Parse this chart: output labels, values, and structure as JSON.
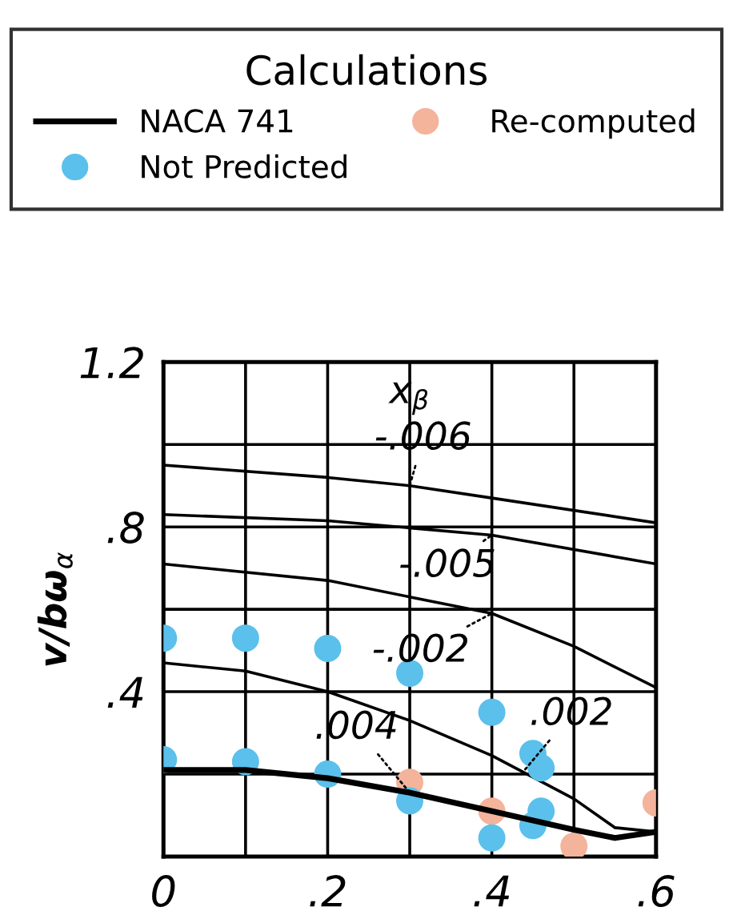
{
  "chart_data": {
    "type": "line",
    "legend_title": "Calculations",
    "ylabel": "v/bω$_{α}$",
    "xlim": [
      0,
      0.6
    ],
    "ylim": [
      0,
      1.2
    ],
    "xticks": [
      0,
      {
        "value": 0.1,
        "label": null
      },
      {
        "value": 0.2,
        "label": ".2"
      },
      {
        "value": 0.3,
        "label": null
      },
      {
        "value": 0.4,
        "label": ".4"
      },
      {
        "value": 0.5,
        "label": null
      },
      {
        "value": 0.6,
        "label": ".6"
      }
    ],
    "yticks": [
      {
        "value": 0,
        "label": null
      },
      {
        "value": 0.2,
        "label": null
      },
      {
        "value": 0.4,
        "label": ".4"
      },
      {
        "value": 0.6,
        "label": null
      },
      {
        "value": 0.8,
        "label": ".8"
      },
      {
        "value": 1.0,
        "label": null
      },
      1.2
    ],
    "grid": true,
    "legend": "top",
    "series": [
      {
        "color": "#000000",
        "x": [
          0,
          0.2,
          0.3,
          0.4,
          0.6
        ],
        "values": [
          0.95,
          0.92,
          0.9,
          0.87,
          0.81
        ]
      },
      {
        "color": "#000000",
        "x": [
          0,
          0.2,
          0.4,
          0.6
        ],
        "values": [
          0.83,
          0.815,
          0.78,
          0.71
        ]
      },
      {
        "color": "#000000",
        "x": [
          0,
          0.2,
          0.3,
          0.4,
          0.5,
          0.6
        ],
        "values": [
          0.71,
          0.67,
          0.63,
          0.59,
          0.51,
          0.41
        ]
      },
      {
        "color": "#000000",
        "x": [
          0,
          0.1,
          0.2,
          0.3,
          0.4,
          0.5,
          0.55,
          0.6
        ],
        "values": [
          0.47,
          0.45,
          0.4,
          0.33,
          0.245,
          0.14,
          0.07,
          0.06
        ]
      },
      {
        "name": "NACA 741",
        "color": "#000000",
        "x": [
          0,
          0.1,
          0.2,
          0.3,
          0.4,
          0.5,
          0.55,
          0.6
        ],
        "values": [
          0.21,
          0.21,
          0.19,
          0.155,
          0.11,
          0.065,
          0.045,
          0.06
        ]
      },
      {
        "type": "scatter",
        "name": "Re-computed",
        "color": "#f4b39b",
        "marker": "circle",
        "x": [
          0.3,
          0.4,
          0.5,
          0.6
        ],
        "values": [
          0.18,
          0.11,
          0.025,
          0.13
        ]
      },
      {
        "type": "scatter",
        "name": "Not Predicted",
        "color": "#5bc0eb",
        "marker": "circle",
        "x": [
          0,
          0.1,
          0.2,
          0.3,
          0.4,
          0.45,
          0.46,
          0,
          0.1,
          0.2,
          0.3,
          0.4,
          0.45,
          0.46
        ],
        "values": [
          0.53,
          0.53,
          0.505,
          0.445,
          0.35,
          0.25,
          0.215,
          0.235,
          0.23,
          0.2,
          0.135,
          0.045,
          0.075,
          0.11
        ]
      }
    ],
    "annotations": [
      "x$_{β}$",
      {
        "text": "-.006",
        "x": 0.3,
        "y": 0.9
      },
      {
        "text": "-.005",
        "x": 0.4,
        "y": 0.78
      },
      {
        "text": "-.002",
        "x": 0.4,
        "y": 0.59
      },
      {
        "text": ".002",
        "x": 0.44,
        "y": 0.21
      },
      {
        "text": ".004",
        "x": 0.3,
        "y": 0.155
      }
    ]
  }
}
